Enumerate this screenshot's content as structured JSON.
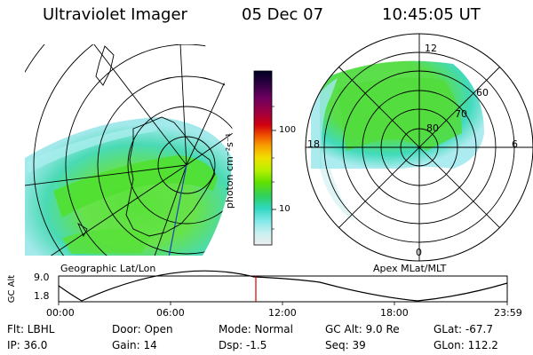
{
  "header": {
    "instrument": "Ultraviolet Imager",
    "date": "05 Dec 07",
    "time": "10:45:05 UT"
  },
  "geo_panel": {
    "label": "Geographic Lat/Lon"
  },
  "polar_panel": {
    "label": "Apex MLat/MLT",
    "mlt_labels": {
      "top": "12",
      "left": "18",
      "right": "6",
      "bottom": "0"
    },
    "lat_labels": [
      "60",
      "70",
      "80"
    ]
  },
  "colorbar": {
    "unit": "photon cm⁻²s⁻¹",
    "ticks": [
      "100",
      "10"
    ],
    "colors": [
      "#000020",
      "#2a0040",
      "#6a0060",
      "#a00040",
      "#d00010",
      "#f05000",
      "#f8a000",
      "#f0e000",
      "#b8f000",
      "#60e000",
      "#30d060",
      "#30d8c0",
      "#80e8e8",
      "#c8f0f0",
      "#eeeeee"
    ]
  },
  "alt_plot": {
    "ylabel": "GC Alt",
    "yticks": [
      "9.0",
      "1.8"
    ],
    "xticks": [
      "00:00",
      "06:00",
      "12:00",
      "18:00",
      "23:59"
    ],
    "current_marker_color": "#d00000"
  },
  "info": {
    "filter": "Flt: LBHL",
    "ip": "IP: 36.0",
    "door": "Door: Open",
    "gain": "Gain: 14",
    "mode": "Mode: Normal",
    "dsp": "Dsp:    -1.5",
    "gc_alt": "GC Alt: 9.0 Re",
    "seq": "Seq: 39",
    "glat": "GLat: -67.7",
    "glon": "GLon: 112.2"
  }
}
